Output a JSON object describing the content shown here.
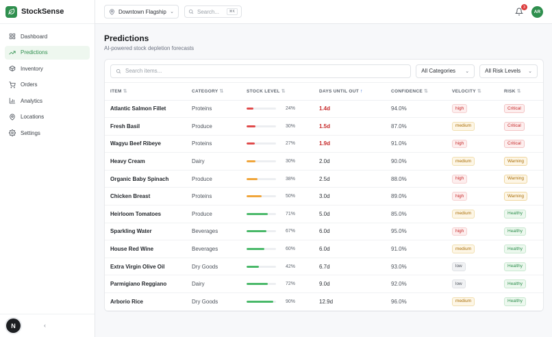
{
  "brand": {
    "name": "StockSense"
  },
  "nav": [
    {
      "label": "Dashboard",
      "icon": "grid-icon",
      "active": false
    },
    {
      "label": "Predictions",
      "icon": "trending-up-icon",
      "active": true
    },
    {
      "label": "Inventory",
      "icon": "box-icon",
      "active": false
    },
    {
      "label": "Orders",
      "icon": "cart-icon",
      "active": false
    },
    {
      "label": "Analytics",
      "icon": "bar-chart-icon",
      "active": false
    },
    {
      "label": "Locations",
      "icon": "map-pin-icon",
      "active": false
    },
    {
      "label": "Settings",
      "icon": "gear-icon",
      "active": false
    }
  ],
  "sidebar_footer": {
    "user_initial": "N"
  },
  "topbar": {
    "location": "Downtown Flagship",
    "search_placeholder": "Search...",
    "shortcut": "⌘K",
    "notification_count": "3",
    "avatar_initials": "AR"
  },
  "page": {
    "title": "Predictions",
    "subtitle": "AI-powered stock depletion forecasts"
  },
  "filters": {
    "search_placeholder": "Search items...",
    "category": "All Categories",
    "risk": "All Risk Levels"
  },
  "table": {
    "columns": [
      "Item",
      "Category",
      "Stock Level",
      "Days Until Out",
      "Confidence",
      "Velocity",
      "Risk"
    ],
    "sorted_column": "Days Until Out",
    "rows": [
      {
        "item": "Atlantic Salmon Fillet",
        "category": "Proteins",
        "stock": 24,
        "stock_label": "24%",
        "days": "1.4d",
        "critical_days": true,
        "confidence": "94.0%",
        "velocity": "high",
        "risk": "Critical"
      },
      {
        "item": "Fresh Basil",
        "category": "Produce",
        "stock": 30,
        "stock_label": "30%",
        "days": "1.5d",
        "critical_days": true,
        "confidence": "87.0%",
        "velocity": "medium",
        "risk": "Critical"
      },
      {
        "item": "Wagyu Beef Ribeye",
        "category": "Proteins",
        "stock": 27,
        "stock_label": "27%",
        "days": "1.9d",
        "critical_days": true,
        "confidence": "91.0%",
        "velocity": "high",
        "risk": "Critical"
      },
      {
        "item": "Heavy Cream",
        "category": "Dairy",
        "stock": 30,
        "stock_label": "30%",
        "days": "2.0d",
        "critical_days": false,
        "confidence": "90.0%",
        "velocity": "medium",
        "risk": "Warning"
      },
      {
        "item": "Organic Baby Spinach",
        "category": "Produce",
        "stock": 38,
        "stock_label": "38%",
        "days": "2.5d",
        "critical_days": false,
        "confidence": "88.0%",
        "velocity": "high",
        "risk": "Warning"
      },
      {
        "item": "Chicken Breast",
        "category": "Proteins",
        "stock": 50,
        "stock_label": "50%",
        "days": "3.0d",
        "critical_days": false,
        "confidence": "89.0%",
        "velocity": "high",
        "risk": "Warning"
      },
      {
        "item": "Heirloom Tomatoes",
        "category": "Produce",
        "stock": 71,
        "stock_label": "71%",
        "days": "5.0d",
        "critical_days": false,
        "confidence": "85.0%",
        "velocity": "medium",
        "risk": "Healthy"
      },
      {
        "item": "Sparkling Water",
        "category": "Beverages",
        "stock": 67,
        "stock_label": "67%",
        "days": "6.0d",
        "critical_days": false,
        "confidence": "95.0%",
        "velocity": "high",
        "risk": "Healthy"
      },
      {
        "item": "House Red Wine",
        "category": "Beverages",
        "stock": 60,
        "stock_label": "60%",
        "days": "6.0d",
        "critical_days": false,
        "confidence": "91.0%",
        "velocity": "medium",
        "risk": "Healthy"
      },
      {
        "item": "Extra Virgin Olive Oil",
        "category": "Dry Goods",
        "stock": 42,
        "stock_label": "42%",
        "days": "6.7d",
        "critical_days": false,
        "confidence": "93.0%",
        "velocity": "low",
        "risk": "Healthy"
      },
      {
        "item": "Parmigiano Reggiano",
        "category": "Dairy",
        "stock": 72,
        "stock_label": "72%",
        "days": "9.0d",
        "critical_days": false,
        "confidence": "92.0%",
        "velocity": "low",
        "risk": "Healthy"
      },
      {
        "item": "Arborio Rice",
        "category": "Dry Goods",
        "stock": 90,
        "stock_label": "90%",
        "days": "12.9d",
        "critical_days": false,
        "confidence": "96.0%",
        "velocity": "medium",
        "risk": "Healthy"
      }
    ]
  },
  "colors": {
    "accent": "#2f8f4e",
    "bar_critical": "#e04a4a",
    "bar_warning": "#f0a53a",
    "bar_healthy": "#48b868"
  }
}
